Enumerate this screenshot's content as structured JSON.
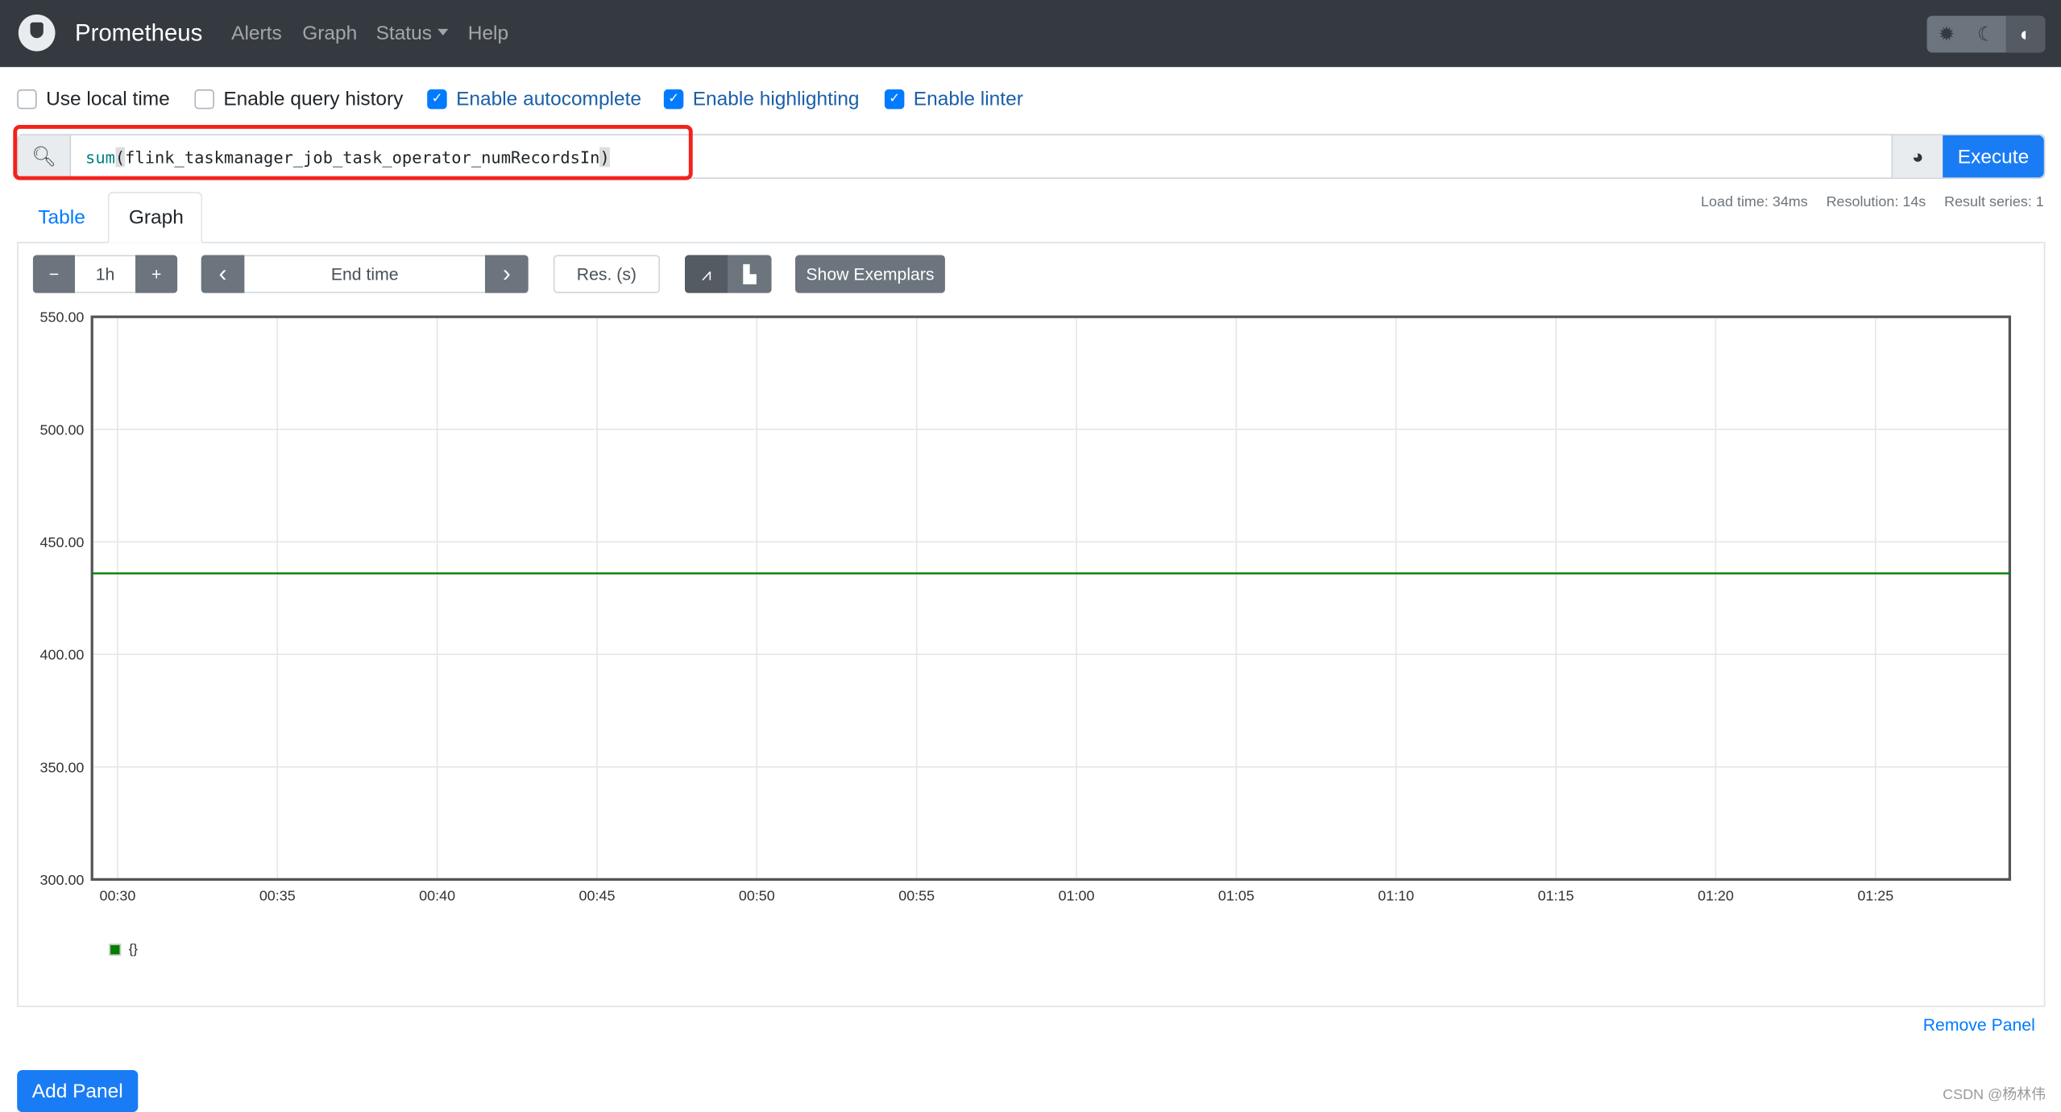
{
  "nav": {
    "brand": "Prometheus",
    "links": [
      "Alerts",
      "Graph",
      "Status",
      "Help"
    ],
    "theme_icons": [
      "sun-icon",
      "moon-icon",
      "half-circle-icon"
    ]
  },
  "options": [
    {
      "label": "Use local time",
      "checked": false
    },
    {
      "label": "Enable query history",
      "checked": false
    },
    {
      "label": "Enable autocomplete",
      "checked": true
    },
    {
      "label": "Enable highlighting",
      "checked": true
    },
    {
      "label": "Enable linter",
      "checked": true
    }
  ],
  "query": {
    "fn": "sum",
    "open": "(",
    "metric": "flink_taskmanager_job_task_operator_numRecordsIn",
    "close": ")",
    "execute_label": "Execute"
  },
  "tabs": {
    "table": "Table",
    "graph": "Graph"
  },
  "stats": {
    "load": "Load time: 34ms",
    "resolution": "Resolution: 14s",
    "series": "Result series: 1"
  },
  "controls": {
    "range": "1h",
    "minus": "−",
    "plus": "+",
    "end_time_placeholder": "End time",
    "prev": "‹",
    "next": "›",
    "res_placeholder": "Res. (s)",
    "show_exemplars": "Show Exemplars"
  },
  "chart_data": {
    "type": "line",
    "ylim": [
      300,
      550
    ],
    "y_ticks": [
      "550.00",
      "500.00",
      "450.00",
      "400.00",
      "350.00",
      "300.00"
    ],
    "x_ticks": [
      "00:30",
      "00:35",
      "00:40",
      "00:45",
      "00:50",
      "00:55",
      "01:00",
      "01:05",
      "01:10",
      "01:15",
      "01:20",
      "01:25"
    ],
    "xlim": [
      "00:29:12",
      "01:29:12"
    ],
    "grid": true,
    "series": [
      {
        "label": "{}",
        "color": "#008000",
        "x": [
          "00:29:12",
          "01:29:12"
        ],
        "y": [
          436,
          436
        ]
      }
    ],
    "legend_position": "bottom-left"
  },
  "footer": {
    "remove_panel": "Remove Panel",
    "add_panel": "Add Panel",
    "watermark": "CSDN @杨林伟"
  }
}
